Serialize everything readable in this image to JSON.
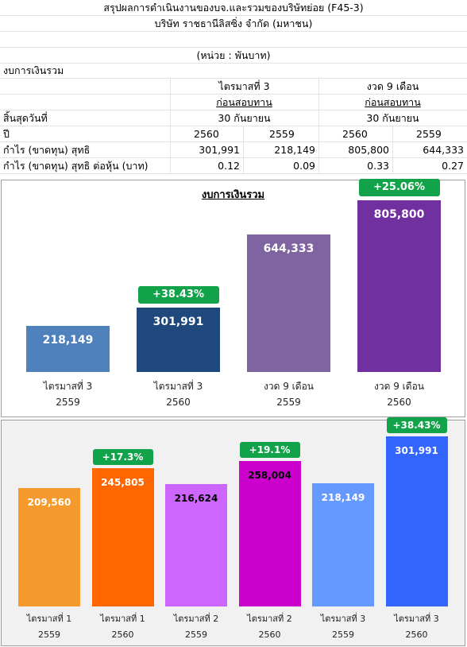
{
  "sheet": {
    "title": "สรุปผลการดำเนินงานของบจ.และรวมของบริษัทย่อย (F45-3)",
    "company": "บริษัท ราชธานีลิสซิ่ง จำกัด (มหาชน)",
    "unit": "(หน่วย : พันบาท)",
    "section": "งบการเงินรวม",
    "period_headers": [
      "ไตรมาสที่ 3",
      "งวด 9 เดือน"
    ],
    "audit_status": [
      "ก่อนสอบทาน",
      "ก่อนสอบทาน"
    ],
    "period_end_label": "สิ้นสุดวันที่",
    "period_end_values": [
      "30 กันยายน",
      "30 กันยายน"
    ],
    "year_label": "ปี",
    "years": [
      "2560",
      "2559",
      "2560",
      "2559"
    ],
    "rows": [
      {
        "label": "กำไร (ขาดทุน) สุทธิ",
        "values": [
          "301,991",
          "218,149",
          "805,800",
          "644,333"
        ]
      },
      {
        "label": "กำไร (ขาดทุน) สุทธิ ต่อหุ้น (บาท)",
        "values": [
          "0.12",
          "0.09",
          "0.33",
          "0.27"
        ]
      }
    ]
  },
  "chart_data": [
    {
      "type": "bar",
      "title": "งบการเงินรวม",
      "categories": [
        [
          "ไตรมาสที่ 3",
          "2559"
        ],
        [
          "ไตรมาสที่ 3",
          "2560"
        ],
        [
          "งวด 9 เดือน",
          "2559"
        ],
        [
          "งวด 9 เดือน",
          "2560"
        ]
      ],
      "values": [
        218149,
        301991,
        644333,
        805800
      ],
      "value_labels": [
        "218,149",
        "301,991",
        "644,333",
        "805,800"
      ],
      "colors": [
        "#4f81bd",
        "#1f497d",
        "#8064a2",
        "#7030a0"
      ],
      "growth_badges": [
        "",
        "+38.43%",
        "",
        "+25.06%"
      ],
      "ylim": [
        0,
        900000
      ]
    },
    {
      "type": "bar",
      "title": "",
      "categories": [
        [
          "ไตรมาสที่ 1",
          "2559"
        ],
        [
          "ไตรมาสที่ 1",
          "2560"
        ],
        [
          "ไตรมาสที่ 2",
          "2559"
        ],
        [
          "ไตรมาสที่ 2",
          "2560"
        ],
        [
          "ไตรมาสที่ 3",
          "2559"
        ],
        [
          "ไตรมาสที่ 3",
          "2560"
        ]
      ],
      "values": [
        209560,
        245805,
        216624,
        258004,
        218149,
        301991
      ],
      "value_labels": [
        "209,560",
        "245,805",
        "216,624",
        "258,004",
        "218,149",
        "301,991"
      ],
      "colors": [
        "#f79a2e",
        "#ff6600",
        "#cc66ff",
        "#cc00cc",
        "#6699ff",
        "#3366ff"
      ],
      "label_colors": [
        "#ffffff",
        "#ffffff",
        "#000000",
        "#000000",
        "#ffffff",
        "#ffffff"
      ],
      "growth_badges": [
        "",
        "+17.3%",
        "",
        "+19.1%",
        "",
        "+38.43%"
      ],
      "ylim": [
        0,
        330000
      ]
    }
  ]
}
